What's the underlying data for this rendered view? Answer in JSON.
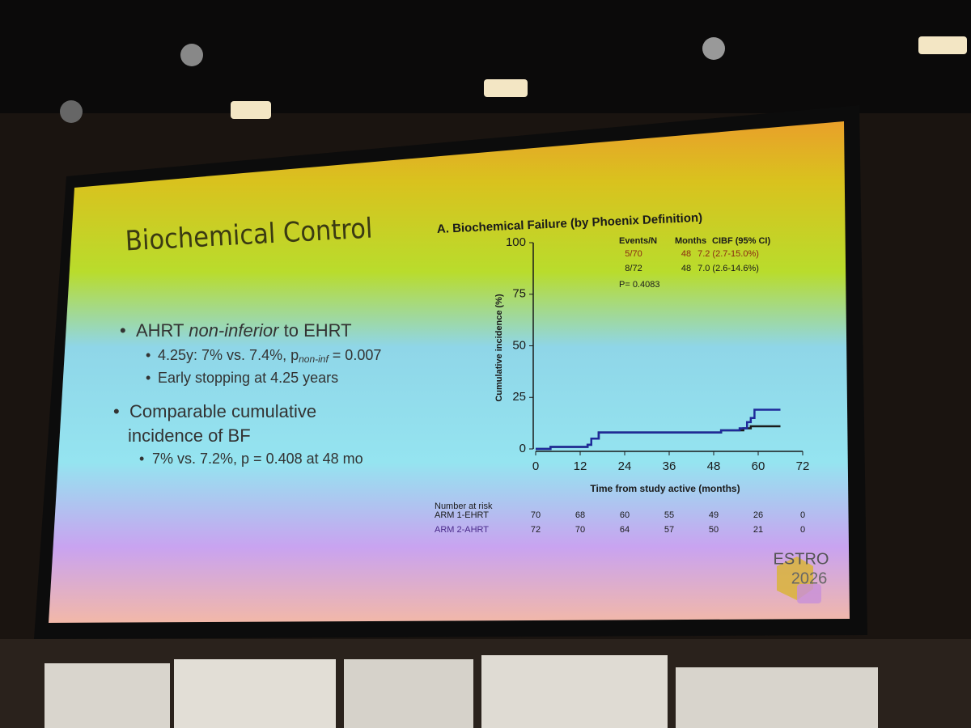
{
  "slide": {
    "title": "Biochemical Control",
    "bullets": [
      {
        "segments": [
          "AHRT ",
          "non-inferior",
          " to EHRT"
        ],
        "sub": [
          {
            "segments": [
              "4.25y: 7% vs. 7.4%, p",
              "non-inf",
              " = 0.007"
            ]
          },
          {
            "segments": [
              "Early stopping at 4.25 years"
            ]
          }
        ]
      },
      {
        "lines": [
          "Comparable cumulative",
          "incidence of BF"
        ],
        "sub": [
          {
            "segments": [
              "7% vs. 7.2%, p = 0.408 at 48 mo"
            ]
          }
        ]
      }
    ],
    "logo": [
      "ESTRO",
      "2026"
    ]
  },
  "chart_data": {
    "type": "step",
    "title": "A. Biochemical Failure (by Phoenix Definition)",
    "y_label": "Cumulative incidence (%)",
    "x_label": "Time from study active (months)",
    "xlim": [
      0,
      72
    ],
    "xticks": [
      0,
      12,
      24,
      36,
      48,
      60,
      72
    ],
    "ylim": [
      0,
      100
    ],
    "yticks": [
      0,
      25,
      50,
      75,
      100
    ],
    "stats_table": {
      "header": [
        "Events/N",
        "Months",
        "CIBF (95% CI)"
      ],
      "rows": [
        [
          "5/70",
          "48",
          "7.2 (2.7-15.0%)"
        ],
        [
          "8/72",
          "48",
          "7.0 (2.6-14.6%)"
        ]
      ],
      "row_colors": [
        "#8a2a12",
        "#1a1a1a"
      ]
    },
    "annotation": "P= 0.4083",
    "at_risk_title": "Number at risk",
    "series": [
      {
        "name": "ARM 1-EHRT",
        "color": "#1a1a1a",
        "x": [
          0,
          4,
          10,
          14,
          15,
          17,
          30,
          50,
          56,
          58,
          66
        ],
        "values": [
          0,
          1,
          1,
          2,
          5,
          8,
          8,
          9,
          10,
          11,
          11
        ],
        "at_risk": [
          70,
          68,
          60,
          55,
          49,
          26,
          0
        ]
      },
      {
        "name": "ARM 2-AHRT",
        "color": "#1f2a9a",
        "x": [
          0,
          4,
          10,
          14,
          15,
          17,
          30,
          50,
          55,
          57,
          58,
          59,
          66
        ],
        "values": [
          0,
          1,
          1,
          2,
          5,
          8,
          8,
          9,
          10,
          13,
          15,
          19,
          19
        ],
        "at_risk": [
          72,
          70,
          64,
          57,
          50,
          21,
          0
        ]
      }
    ]
  }
}
